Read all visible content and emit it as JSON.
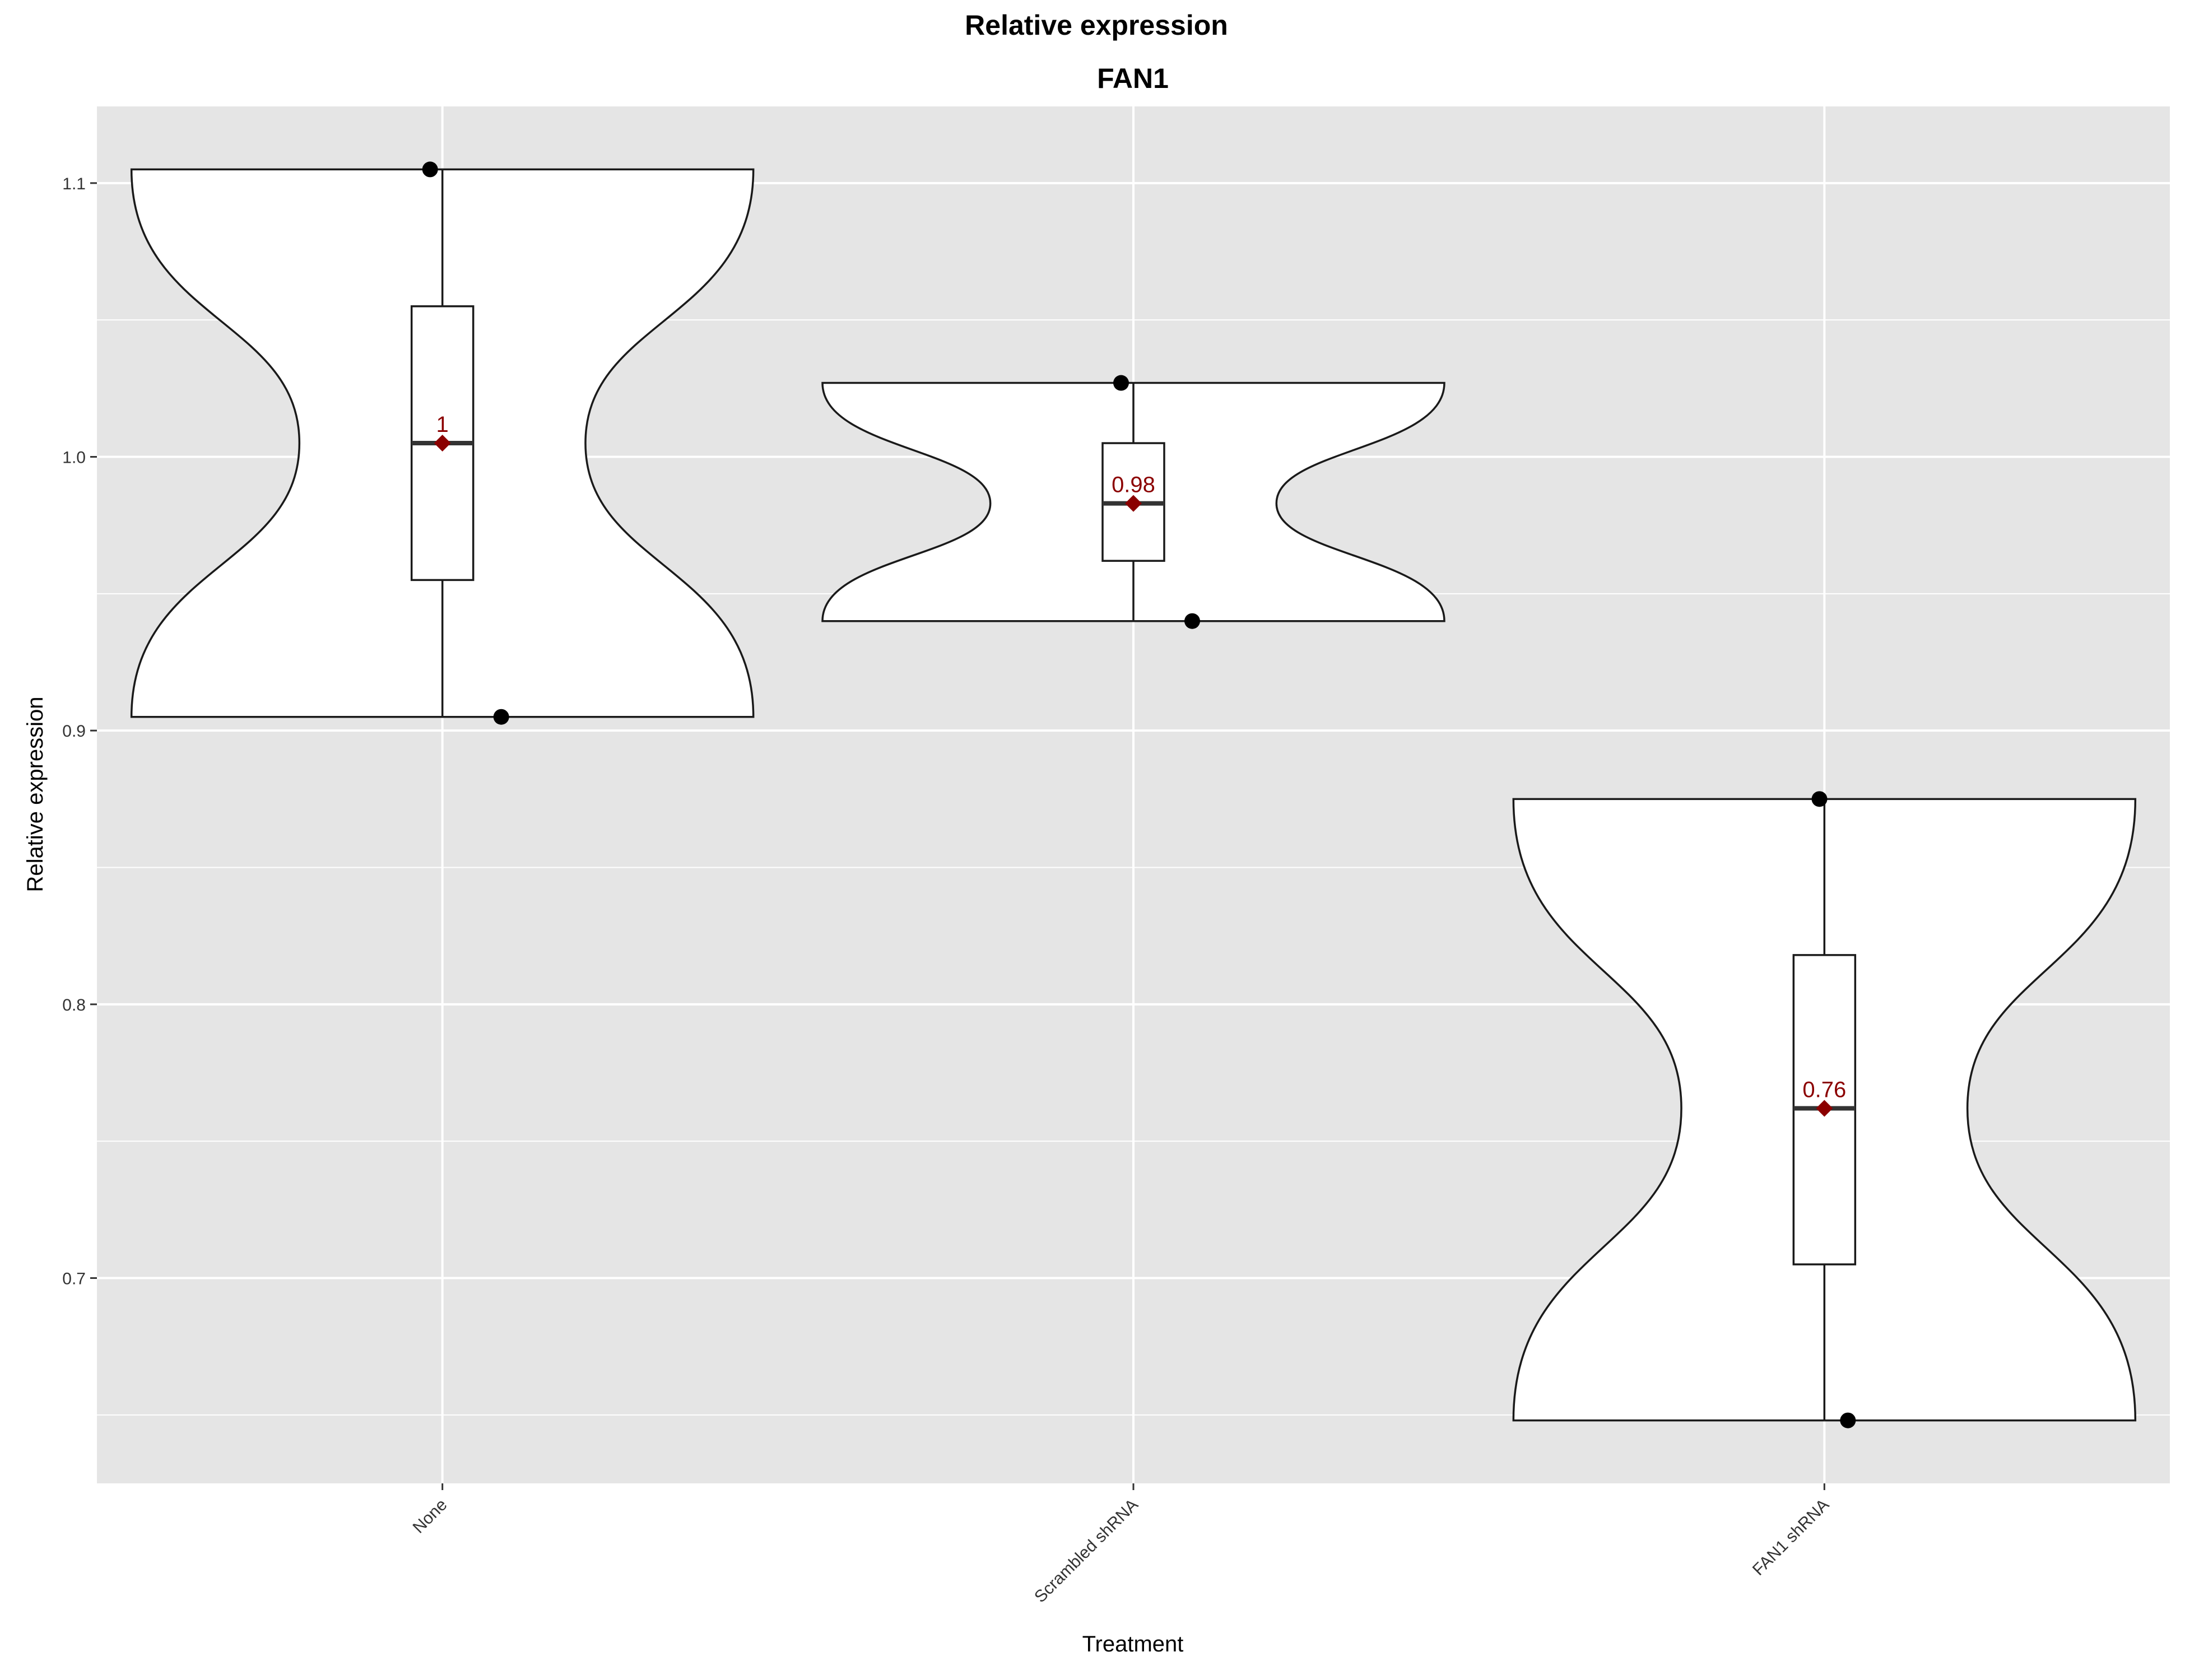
{
  "chart_data": {
    "type": "violin",
    "title": "Relative expression",
    "subtitle": "FAN1",
    "xlabel": "Treatment",
    "ylabel": "Relative expression",
    "ylim": [
      0.625,
      1.128
    ],
    "yticks": [
      0.7,
      0.8,
      0.9,
      1.0,
      1.1
    ],
    "ytick_labels": [
      "0.7",
      "0.8",
      "0.9",
      "1.0",
      "1.1"
    ],
    "grid": true,
    "categories": [
      "None",
      "Scrambled shRNA",
      "FAN1 shRNA"
    ],
    "groups": [
      {
        "name": "None",
        "points": [
          1.105,
          0.905
        ],
        "min": 0.905,
        "q1": 0.955,
        "median": 1.005,
        "q3": 1.055,
        "max": 1.105,
        "mean": 1.005,
        "mean_label": "1"
      },
      {
        "name": "Scrambled shRNA",
        "points": [
          1.027,
          0.94
        ],
        "min": 0.94,
        "q1": 0.962,
        "median": 0.983,
        "q3": 1.005,
        "max": 1.027,
        "mean": 0.983,
        "mean_label": "0.98"
      },
      {
        "name": "FAN1 shRNA",
        "points": [
          0.875,
          0.648
        ],
        "min": 0.648,
        "q1": 0.705,
        "median": 0.762,
        "q3": 0.818,
        "max": 0.875,
        "mean": 0.762,
        "mean_label": "0.76"
      }
    ],
    "colors": {
      "panel_bg": "#e5e5e5",
      "grid": "#ffffff",
      "violin_fill": "#ffffff",
      "outline": "#1a1a1a",
      "point": "#000000",
      "mean_marker": "#8b0000",
      "median_line": "#333333"
    }
  }
}
